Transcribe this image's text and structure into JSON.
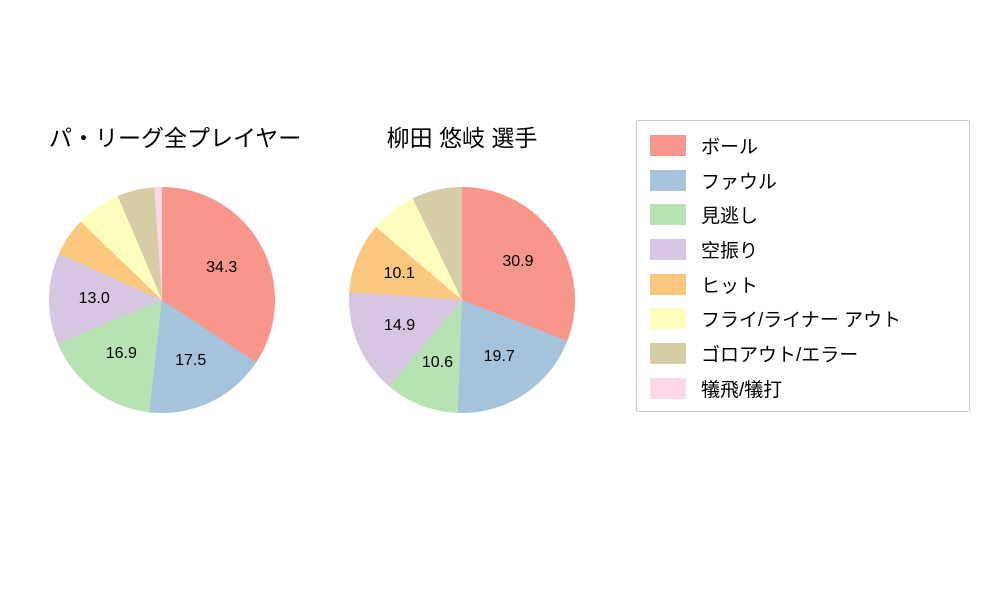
{
  "chart_data": {
    "type": "pie",
    "direction": "clockwise",
    "start_angle": "top",
    "label_radius_fraction": 0.6,
    "legend_position": "right",
    "legend": [
      {
        "label": "ボール",
        "color": "#F8968B"
      },
      {
        "label": "ファウル",
        "color": "#A6C3DC"
      },
      {
        "label": "見逃し",
        "color": "#B7E2B1"
      },
      {
        "label": "空振り",
        "color": "#D7C6E2"
      },
      {
        "label": "ヒット",
        "color": "#FAC77E"
      },
      {
        "label": "フライ/ライナー アウト",
        "color": "#FDFDBE"
      },
      {
        "label": "ゴロアウト/エラー",
        "color": "#D6CCA5"
      },
      {
        "label": "犠飛/犠打",
        "color": "#FBD7E8"
      }
    ],
    "charts": [
      {
        "title": "パ・リーグ全プレイヤー",
        "slices": [
          {
            "category": "ボール",
            "value": 34.3,
            "label": "34.3"
          },
          {
            "category": "ファウル",
            "value": 17.5,
            "label": "17.5"
          },
          {
            "category": "見逃し",
            "value": 16.9,
            "label": "16.9"
          },
          {
            "category": "空振り",
            "value": 13.0,
            "label": "13.0"
          },
          {
            "category": "ヒット",
            "value": 5.5,
            "label": ""
          },
          {
            "category": "フライ/ライナー アウト",
            "value": 6.4,
            "label": ""
          },
          {
            "category": "ゴロアウト/エラー",
            "value": 5.3,
            "label": ""
          },
          {
            "category": "犠飛/犠打",
            "value": 1.1,
            "label": ""
          }
        ]
      },
      {
        "title": "柳田 悠岐  選手",
        "slices": [
          {
            "category": "ボール",
            "value": 30.9,
            "label": "30.9"
          },
          {
            "category": "ファウル",
            "value": 19.7,
            "label": "19.7"
          },
          {
            "category": "見逃し",
            "value": 10.6,
            "label": "10.6"
          },
          {
            "category": "空振り",
            "value": 14.9,
            "label": "14.9"
          },
          {
            "category": "ヒット",
            "value": 10.1,
            "label": "10.1"
          },
          {
            "category": "フライ/ライナー アウト",
            "value": 6.6,
            "label": ""
          },
          {
            "category": "ゴロアウト/エラー",
            "value": 7.2,
            "label": ""
          },
          {
            "category": "犠飛/犠打",
            "value": 0.0,
            "label": ""
          }
        ]
      }
    ]
  }
}
